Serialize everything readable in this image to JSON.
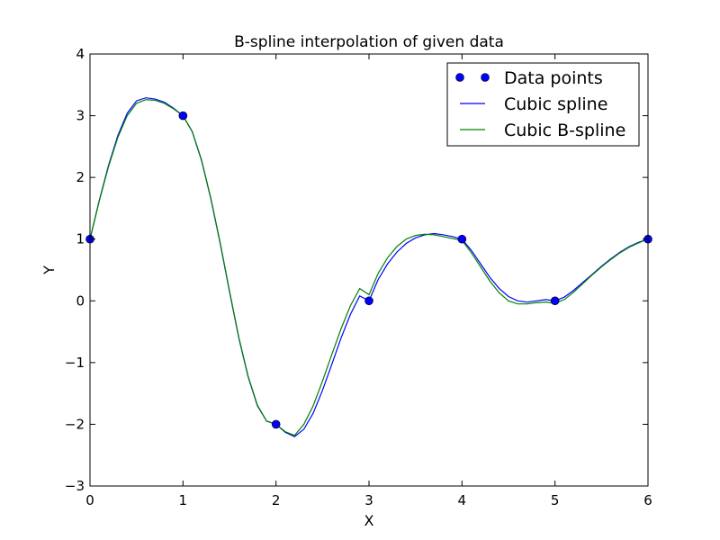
{
  "chart_data": {
    "type": "line",
    "title": "B-spline interpolation of given data",
    "xlabel": "X",
    "ylabel": "Y",
    "xlim": [
      0,
      6
    ],
    "ylim": [
      -3,
      4
    ],
    "xticks": [
      "0",
      "1",
      "2",
      "3",
      "4",
      "5",
      "6"
    ],
    "yticks": [
      "−3",
      "−2",
      "−1",
      "0",
      "1",
      "2",
      "3",
      "4"
    ],
    "grid": false,
    "legend_position": "top-right",
    "series": [
      {
        "name": "Data points",
        "kind": "markers",
        "color": "#0000ff",
        "x": [
          0,
          1,
          2,
          3,
          4,
          5,
          6
        ],
        "y": [
          1,
          3,
          -2,
          0,
          1,
          0,
          1
        ]
      },
      {
        "name": "Cubic spline",
        "kind": "line",
        "color": "#0000ff",
        "x": [
          0,
          0.1,
          0.2,
          0.3,
          0.4,
          0.5,
          0.6,
          0.7,
          0.8,
          0.9,
          1.0,
          1.1,
          1.2,
          1.3,
          1.4,
          1.5,
          1.6,
          1.7,
          1.8,
          1.9,
          2.0,
          2.1,
          2.2,
          2.3,
          2.4,
          2.5,
          2.6,
          2.7,
          2.8,
          2.9,
          3.0,
          3.1,
          3.2,
          3.3,
          3.4,
          3.5,
          3.6,
          3.7,
          3.8,
          3.9,
          4.0,
          4.1,
          4.2,
          4.3,
          4.4,
          4.5,
          4.6,
          4.7,
          4.8,
          4.9,
          5.0,
          5.1,
          5.2,
          5.3,
          5.4,
          5.5,
          5.6,
          5.7,
          5.8,
          5.9,
          6.0
        ],
        "y": [
          1.0,
          1.63,
          2.2,
          2.68,
          3.04,
          3.24,
          3.29,
          3.27,
          3.22,
          3.12,
          3.0,
          2.74,
          2.27,
          1.65,
          0.93,
          0.15,
          -0.6,
          -1.23,
          -1.7,
          -1.95,
          -2.0,
          -2.13,
          -2.2,
          -2.08,
          -1.82,
          -1.45,
          -1.03,
          -0.6,
          -0.22,
          0.08,
          0.0,
          0.35,
          0.6,
          0.79,
          0.93,
          1.02,
          1.07,
          1.09,
          1.07,
          1.04,
          1.0,
          0.82,
          0.6,
          0.38,
          0.2,
          0.07,
          0.0,
          -0.02,
          0.0,
          0.02,
          0.0,
          0.06,
          0.17,
          0.3,
          0.43,
          0.56,
          0.68,
          0.79,
          0.88,
          0.95,
          1.0
        ]
      },
      {
        "name": "Cubic B-spline",
        "kind": "line",
        "color": "#008000",
        "x": [
          0,
          0.1,
          0.2,
          0.3,
          0.4,
          0.5,
          0.6,
          0.7,
          0.8,
          0.9,
          1.0,
          1.1,
          1.2,
          1.3,
          1.4,
          1.5,
          1.6,
          1.7,
          1.8,
          1.9,
          2.0,
          2.1,
          2.2,
          2.3,
          2.4,
          2.5,
          2.6,
          2.7,
          2.8,
          2.9,
          3.0,
          3.1,
          3.2,
          3.3,
          3.4,
          3.5,
          3.6,
          3.7,
          3.8,
          3.9,
          4.0,
          4.1,
          4.2,
          4.3,
          4.4,
          4.5,
          4.6,
          4.7,
          4.8,
          4.9,
          5.0,
          5.1,
          5.2,
          5.3,
          5.4,
          5.5,
          5.6,
          5.7,
          5.8,
          5.9,
          6.0
        ],
        "y": [
          1.0,
          1.62,
          2.18,
          2.65,
          3.0,
          3.2,
          3.26,
          3.25,
          3.2,
          3.11,
          3.0,
          2.74,
          2.28,
          1.66,
          0.94,
          0.16,
          -0.59,
          -1.22,
          -1.69,
          -1.95,
          -2.0,
          -2.12,
          -2.18,
          -2.0,
          -1.7,
          -1.3,
          -0.87,
          -0.45,
          -0.08,
          0.2,
          0.1,
          0.45,
          0.7,
          0.88,
          1.0,
          1.06,
          1.08,
          1.07,
          1.04,
          1.01,
          0.98,
          0.78,
          0.55,
          0.32,
          0.13,
          0.0,
          -0.05,
          -0.05,
          -0.03,
          -0.02,
          -0.04,
          0.02,
          0.14,
          0.28,
          0.42,
          0.55,
          0.67,
          0.78,
          0.87,
          0.94,
          1.0
        ]
      }
    ]
  }
}
